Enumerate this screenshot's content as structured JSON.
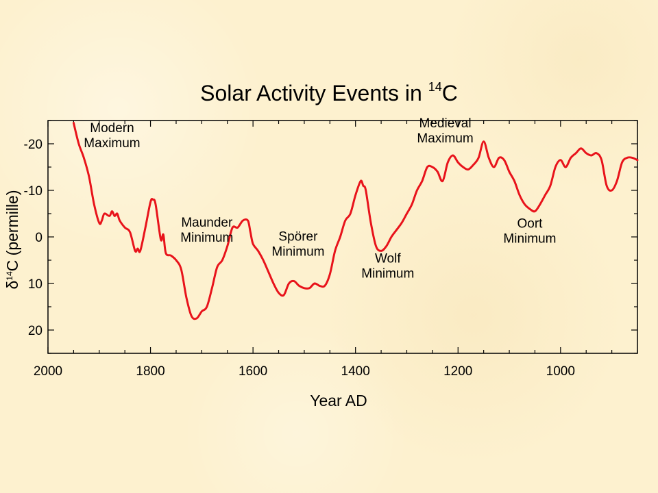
{
  "chart_data": {
    "type": "line",
    "title": "Solar Activity Events in ",
    "title_superscript": "14",
    "title_suffix": "C",
    "xlabel": "Year AD",
    "ylabel": {
      "prefix": "δ",
      "superscript": "14",
      "suffix": "C (permille)"
    },
    "xlim": [
      2000,
      850
    ],
    "ylim": [
      -25,
      25
    ],
    "y_inverted": true,
    "x_ticks": [
      2000,
      1800,
      1600,
      1400,
      1200,
      1000
    ],
    "x_tick_labels": [
      "2000",
      "1800",
      "1600",
      "1400",
      "1200",
      "1000"
    ],
    "y_ticks": [
      -20,
      -10,
      0,
      10,
      20
    ],
    "y_tick_labels": [
      "-20",
      "-10",
      "0",
      "10",
      "20"
    ],
    "grid": false,
    "line_color": "#e8131b",
    "series": [
      {
        "x": [
          1950,
          1940,
          1930,
          1920,
          1910,
          1900,
          1895,
          1890,
          1880,
          1875,
          1870,
          1865,
          1860,
          1850,
          1840,
          1830,
          1825,
          1820,
          1810,
          1800,
          1795,
          1790,
          1780,
          1775,
          1770,
          1760,
          1750,
          1740,
          1730,
          1720,
          1710,
          1700,
          1690,
          1680,
          1670,
          1660,
          1650,
          1640,
          1630,
          1620,
          1610,
          1605,
          1600,
          1590,
          1580,
          1570,
          1560,
          1550,
          1540,
          1530,
          1520,
          1510,
          1500,
          1490,
          1480,
          1470,
          1460,
          1450,
          1440,
          1430,
          1420,
          1410,
          1400,
          1390,
          1385,
          1380,
          1370,
          1360,
          1350,
          1340,
          1330,
          1320,
          1310,
          1300,
          1290,
          1280,
          1270,
          1260,
          1250,
          1240,
          1230,
          1220,
          1210,
          1200,
          1190,
          1180,
          1170,
          1160,
          1150,
          1140,
          1130,
          1120,
          1110,
          1100,
          1090,
          1080,
          1070,
          1060,
          1050,
          1040,
          1030,
          1020,
          1010,
          1000,
          990,
          980,
          970,
          960,
          950,
          940,
          930,
          920,
          910,
          900,
          890,
          880,
          870,
          860,
          850
        ],
        "y": [
          -24.5,
          -20,
          -17,
          -13,
          -7,
          -3,
          -3.5,
          -5,
          -4.5,
          -5.5,
          -4.5,
          -5,
          -3.5,
          -2,
          -1,
          3,
          2.5,
          3,
          -2,
          -7.5,
          -8,
          -7,
          0.5,
          -0.5,
          3.5,
          4,
          5,
          7,
          13,
          17,
          17.5,
          16,
          15,
          11,
          6.5,
          5,
          2,
          -2,
          -2,
          -3.5,
          -3.5,
          -1,
          1.5,
          3,
          5,
          7.5,
          10,
          12,
          12.5,
          10,
          9.5,
          10.5,
          11,
          11,
          10,
          10.5,
          10.5,
          8,
          3,
          0,
          -3.5,
          -5,
          -9,
          -12,
          -11,
          -10,
          -3,
          2,
          3,
          2,
          0,
          -1.5,
          -3,
          -5,
          -7,
          -10,
          -12,
          -15,
          -15,
          -14,
          -12,
          -16,
          -17.5,
          -16,
          -15,
          -14.5,
          -15.5,
          -17,
          -20.5,
          -17,
          -15,
          -17,
          -16.5,
          -14,
          -12,
          -9,
          -7,
          -6,
          -5.5,
          -7,
          -9,
          -11,
          -15,
          -16.5,
          -15,
          -17,
          -18,
          -19,
          -18,
          -17.5,
          -18,
          -16.5,
          -11,
          -10,
          -12,
          -16,
          -17,
          -17,
          -16.5
        ]
      }
    ],
    "annotations": [
      {
        "lines": [
          "Modern",
          "Maximum"
        ],
        "x": 1875,
        "y": -22.5
      },
      {
        "lines": [
          "Maunder",
          "Minimum"
        ],
        "x": 1690,
        "y": -2.2
      },
      {
        "lines": [
          "Spörer",
          "Minimum"
        ],
        "x": 1512,
        "y": 0.8
      },
      {
        "lines": [
          "Wolf",
          "Minimum"
        ],
        "x": 1337,
        "y": 5.5
      },
      {
        "lines": [
          "Medieval",
          "Maximum"
        ],
        "x": 1225,
        "y": -23.5
      },
      {
        "lines": [
          "Oort",
          "Minimum"
        ],
        "x": 1060,
        "y": -2
      }
    ]
  }
}
